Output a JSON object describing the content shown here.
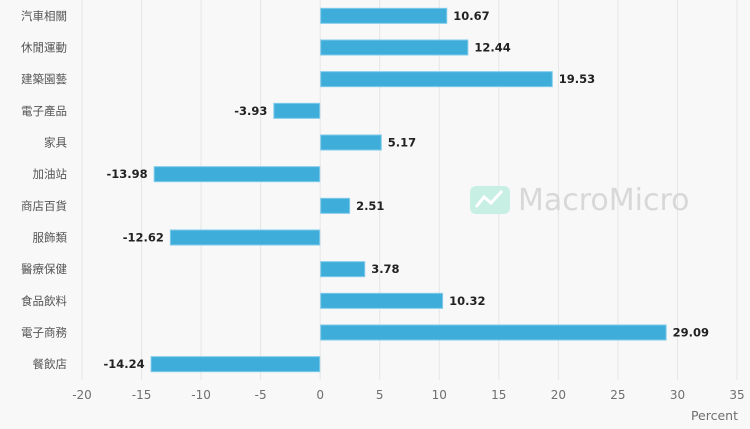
{
  "chart_data": {
    "type": "bar",
    "orientation": "horizontal",
    "categories": [
      "汽車相關",
      "休閒運動",
      "建築園藝",
      "電子產品",
      "家具",
      "加油站",
      "商店百貨",
      "服飾類",
      "醫療保健",
      "食品飲料",
      "電子商務",
      "餐飲店"
    ],
    "values": [
      10.67,
      12.44,
      19.53,
      -3.93,
      5.17,
      -13.98,
      2.51,
      -12.62,
      3.78,
      10.32,
      29.09,
      -14.24
    ],
    "value_labels": [
      "10.67",
      "12.44",
      "19.53",
      "-3.93",
      "5.17",
      "-13.98",
      "2.51",
      "-12.62",
      "3.78",
      "10.32",
      "29.09",
      "-14.24"
    ],
    "xlabel": "Percent",
    "ylabel": "",
    "title": "",
    "xlim": [
      -20,
      35
    ],
    "x_ticks": [
      -20,
      -15,
      -10,
      -5,
      0,
      5,
      10,
      15,
      20,
      25,
      30,
      35
    ],
    "x_tick_labels": [
      "-20",
      "-15",
      "-10",
      "-5",
      "0",
      "5",
      "10",
      "15",
      "20",
      "25",
      "30",
      "35"
    ],
    "grid": true,
    "legend": "none",
    "bar_color": "#3eadd9",
    "bar_border_color": "#7fcbea",
    "grid_color": "#e6e6e6",
    "watermark": "MacroMicro",
    "watermark_logo_color": "#c8efe4"
  }
}
